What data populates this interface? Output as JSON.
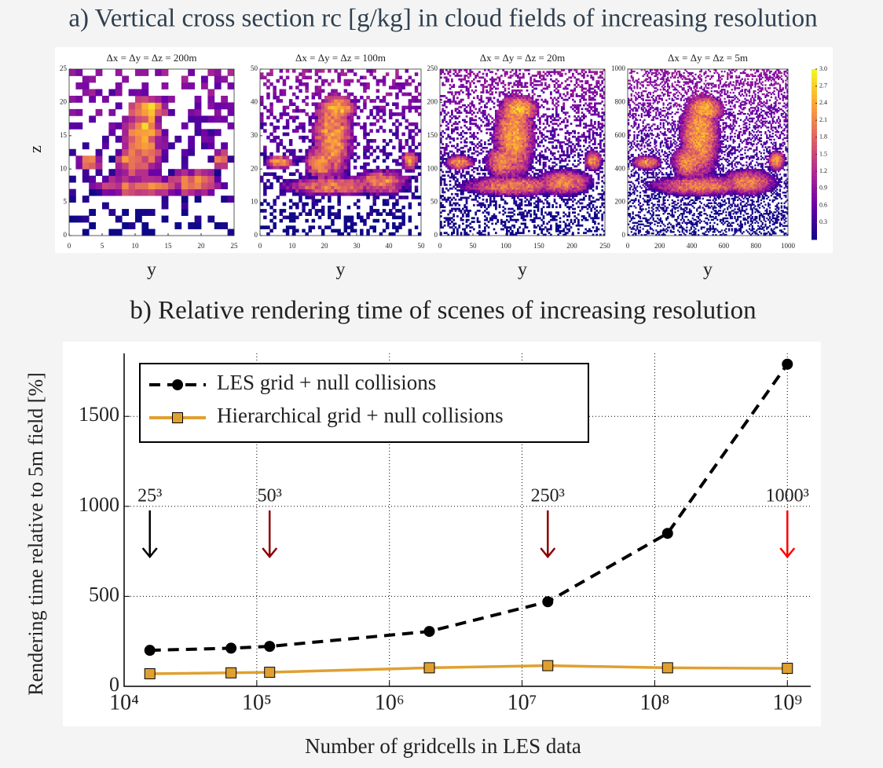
{
  "figure_title": "a) Vertical cross section rc [g/kg] in cloud fields of increasing resolution",
  "chart_data": [
    {
      "type": "heatmap",
      "title": "Δx = Δy = Δz = 200m",
      "x_label": "y",
      "y_label": "z",
      "xlim": [
        0,
        25
      ],
      "ylim": [
        0,
        25
      ],
      "xticks": [
        0,
        5,
        10,
        15,
        20,
        25
      ],
      "yticks": [
        0,
        5,
        10,
        15,
        20,
        25
      ]
    },
    {
      "type": "heatmap",
      "title": "Δx = Δy = Δz = 100m",
      "x_label": "y",
      "xlim": [
        0,
        50
      ],
      "ylim": [
        0,
        50
      ],
      "xticks": [
        0,
        10,
        20,
        30,
        40,
        50
      ],
      "yticks": [
        0,
        10,
        20,
        30,
        40,
        50
      ]
    },
    {
      "type": "heatmap",
      "title": "Δx = Δy = Δz = 20m",
      "x_label": "y",
      "xlim": [
        0,
        250
      ],
      "ylim": [
        0,
        250
      ],
      "xticks": [
        0,
        50,
        100,
        150,
        200,
        250
      ],
      "yticks": [
        0,
        50,
        100,
        150,
        200,
        250
      ]
    },
    {
      "type": "heatmap",
      "title": "Δx = Δy = Δz = 5m",
      "x_label": "y",
      "xlim": [
        0,
        1000
      ],
      "ylim": [
        0,
        1000
      ],
      "xticks": [
        0,
        200,
        400,
        600,
        800,
        1000
      ],
      "yticks": [
        0,
        200,
        400,
        600,
        800,
        1000
      ],
      "clim": [
        0,
        3
      ],
      "colorbar_ticks": [
        0.3,
        0.6,
        0.9,
        1.2,
        1.5,
        1.8,
        2.1,
        2.4,
        2.7,
        {
          "value": 3,
          "label": "3.0"
        }
      ]
    },
    {
      "type": "line",
      "title": "b) Relative rendering time of scenes of increasing resolution",
      "x_label": "Number of gridcells in LES data",
      "y_label": "Rendering time relative to 5m field [%]",
      "log_x": true,
      "grid": true,
      "xlim": [
        10000,
        1500000000
      ],
      "ylim": [
        0,
        1850
      ],
      "xticks": [
        {
          "value": 10000,
          "label": "10⁴"
        },
        {
          "value": 100000,
          "label": "10⁵"
        },
        {
          "value": 1000000,
          "label": "10⁶"
        },
        {
          "value": 10000000,
          "label": "10⁷"
        },
        {
          "value": 100000000,
          "label": "10⁸"
        },
        {
          "value": 1000000000,
          "label": "10⁹"
        }
      ],
      "yticks": [
        0,
        500,
        1000,
        1500
      ],
      "x": [
        15625,
        64000,
        125000,
        2000000,
        15625000,
        125000000,
        1000000000
      ],
      "series": [
        {
          "name": "LES grid + null collisions",
          "color": "#000000",
          "values": [
            200,
            212,
            222,
            305,
            470,
            850,
            1790
          ]
        },
        {
          "name": "Hierarchical grid + null collisions",
          "color": "#e0a030",
          "values": [
            70,
            75,
            78,
            103,
            115,
            103,
            100
          ]
        }
      ],
      "annotations": [
        {
          "text": "25³",
          "x": 15625,
          "color": "#000000"
        },
        {
          "text": "50³",
          "x": 125000,
          "color": "#8b0000"
        },
        {
          "text": "250³",
          "x": 15625000,
          "color": "#8b0000"
        },
        {
          "text": "1000³",
          "x": 1000000000,
          "color": "#ff0000"
        }
      ]
    }
  ]
}
